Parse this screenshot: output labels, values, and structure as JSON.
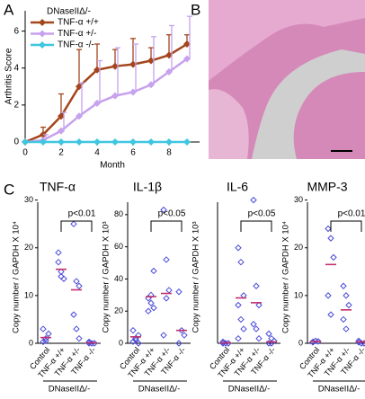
{
  "panels": [
    "A",
    "B",
    "C"
  ],
  "chart_data": [
    {
      "type": "line",
      "xlabel": "Month",
      "ylabel": "Arthritis Score",
      "legend_title": "DNaseIIΔ/-",
      "x": [
        0,
        1,
        2,
        3,
        4,
        5,
        6,
        7,
        8,
        9
      ],
      "xlim": [
        0,
        9.7
      ],
      "xticks": [
        0,
        2,
        4,
        6,
        8
      ],
      "ylim": [
        0,
        7.1
      ],
      "yticks": [
        0,
        2,
        4,
        6
      ],
      "series": [
        {
          "name": "TNF-α +/+",
          "color": "#a3461c",
          "values": [
            0,
            0.4,
            1.4,
            3.0,
            3.9,
            4.1,
            4.2,
            4.4,
            4.7,
            5.3
          ],
          "errors": [
            0,
            0.4,
            1.2,
            2.0,
            1.4,
            0.9,
            1.4,
            0.7,
            1.1,
            0.5
          ]
        },
        {
          "name": "TNF-α +/-",
          "color": "#c7a2ee",
          "values": [
            0,
            0.1,
            0.6,
            1.4,
            2.1,
            2.5,
            2.7,
            3.1,
            3.8,
            4.5
          ],
          "errors": [
            0,
            0.3,
            1.0,
            1.8,
            2.3,
            2.6,
            2.6,
            2.6,
            2.5,
            2.3
          ]
        },
        {
          "name": "TNF-α -/-",
          "color": "#3fc6e0",
          "values": [
            0,
            0,
            0,
            0,
            0,
            0,
            0,
            0,
            0,
            0
          ],
          "errors": [
            0,
            0,
            0,
            0,
            0,
            0,
            0,
            0,
            0,
            0
          ]
        }
      ]
    },
    {
      "type": "strip",
      "title": "TNF-α",
      "ylabel": "Copy number / GAPDH X 10⁴",
      "group_label": "DNaseIIΔ/-",
      "annotation": "p<0.01",
      "categories": [
        "Control",
        "TNF-α +/+",
        "TNF-α +/-",
        "TNF-α -/-"
      ],
      "values": [
        [
          0.3,
          1.0,
          2.0,
          3.0,
          0.5
        ],
        [
          19,
          14,
          13.5,
          17,
          15
        ],
        [
          25,
          13,
          12,
          6,
          3,
          1
        ],
        [
          0,
          0,
          0,
          0.3
        ]
      ],
      "medians": [
        1.2,
        15.5,
        11.2,
        0.1
      ],
      "ylim": [
        0,
        32
      ],
      "yticks": [
        0,
        10,
        20,
        30
      ],
      "color": "#4a4ad8",
      "median_color": "#c2306c"
    },
    {
      "type": "strip",
      "title": "IL-1β",
      "ylabel": "Copy number / GAPDH X 10³",
      "group_label": "DNaseIIΔ/-",
      "annotation": "p<0.05",
      "categories": [
        "Control",
        "TNF-α +/+",
        "TNF-α +/-",
        "TNF-α -/-"
      ],
      "values": [
        [
          1,
          3,
          5,
          8,
          2,
          0
        ],
        [
          28,
          30,
          22,
          20,
          25,
          45
        ],
        [
          83,
          52,
          33,
          5,
          28
        ],
        [
          32,
          8,
          5,
          0
        ]
      ],
      "medians": [
        4,
        29,
        31,
        8
      ],
      "ylim": [
        0,
        95
      ],
      "yticks": [
        0,
        20,
        40,
        60,
        80
      ],
      "color": "#4a4ad8",
      "median_color": "#c2306c"
    },
    {
      "type": "strip",
      "title": "IL-6",
      "ylabel": "Copy number / GAPDH X 10³",
      "group_label": "DNaseIIΔ/-",
      "annotation": "p<0.05",
      "categories": [
        "Control",
        "TNF-α +/+",
        "TNF-α +/-",
        "TNF-α -/-"
      ],
      "values": [
        [
          0,
          0,
          0,
          0.3
        ],
        [
          20,
          17,
          10,
          8,
          5,
          3,
          1
        ],
        [
          30,
          12,
          8,
          4,
          3,
          1
        ],
        [
          2,
          1,
          0.5,
          0,
          0
        ]
      ],
      "medians": [
        0.1,
        9.5,
        8.5,
        0.3
      ],
      "ylim": [
        0,
        32
      ],
      "yticks": [],
      "color": "#4a4ad8",
      "median_color": "#c2306c"
    },
    {
      "type": "strip",
      "title": "MMP-3",
      "ylabel": "Copy number / GAPDH X 10⁴",
      "group_label": "DNaseIIΔ/-",
      "annotation": "p<0.01",
      "categories": [
        "Control",
        "TNF-α +/+",
        "TNF-α +/-",
        "TNF-α -/-"
      ],
      "values": [
        [
          0.3,
          0.5,
          0.4,
          0.2
        ],
        [
          24,
          22,
          18,
          10,
          6
        ],
        [
          12,
          10,
          8,
          5,
          3
        ],
        [
          0.5,
          0,
          0,
          0.2
        ]
      ],
      "medians": [
        0.4,
        16.5,
        7,
        0.3
      ],
      "ylim": [
        0,
        32
      ],
      "yticks": [
        0,
        10,
        20,
        30
      ],
      "color": "#4a4ad8",
      "median_color": "#c2306c"
    }
  ]
}
